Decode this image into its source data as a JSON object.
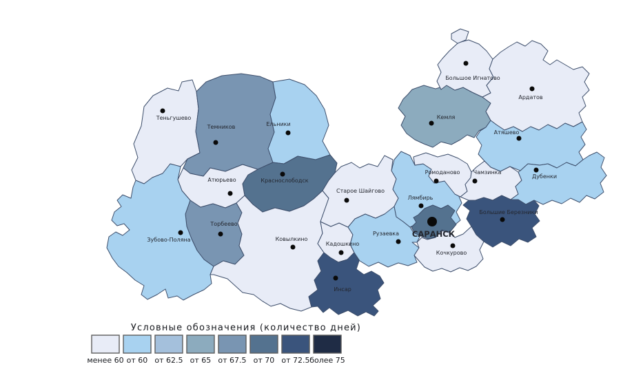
{
  "legend": {
    "title": "Условные обозначения (количество дней)",
    "classes": [
      {
        "label": "менее 60",
        "color": "#e8ecf7"
      },
      {
        "label": "от 60",
        "color": "#a8d2f0"
      },
      {
        "label": "от 62.5",
        "color": "#a4c0dc"
      },
      {
        "label": "от 65",
        "color": "#8cabbe"
      },
      {
        "label": "от 67.5",
        "color": "#7995b2"
      },
      {
        "label": "от 70",
        "color": "#54728f"
      },
      {
        "label": "от 72.5",
        "color": "#3a547c"
      },
      {
        "label": "более 75",
        "color": "#1f2c45"
      }
    ]
  },
  "map": {
    "border_color": "#3d4e6b",
    "dot_color": "#0a0a0a",
    "capital_name": "САРАНСК",
    "districts": [
      {
        "id": "tengushevo",
        "name": "Теньгушево",
        "value": "менее 60",
        "cls": 0,
        "dot": [
          236,
          161
        ],
        "label": [
          252,
          174
        ],
        "shapes": [
          "205,183 209,155 222,139 243,128 259,132 264,119 279,116 285,133 288,158 284,191 290,222 272,231 262,242 247,238 236,252 221,258 209,267 197,262 191,247 200,229 194,209"
        ]
      },
      {
        "id": "temnikov",
        "name": "Темников",
        "value": "от 67.5",
        "cls": 4,
        "dot": [
          313,
          207
        ],
        "label": [
          321,
          187
        ],
        "shapes": [
          "285,133 299,119 322,110 350,107 377,111 396,119 400,142 392,166 398,192 389,216 396,236 374,246 352,239 327,249 305,244 295,256 276,252 266,244 272,231 290,222 284,191 288,158"
        ]
      },
      {
        "id": "elniki",
        "name": "Ельники",
        "value": "от 60",
        "cls": 1,
        "dot": [
          418,
          193
        ],
        "label": [
          404,
          183
        ],
        "shapes": [
          "396,119 420,115 442,123 459,139 471,159 477,182 468,205 479,225 458,232 432,227 412,238 396,236 389,216 398,192 392,166 400,142"
        ]
      },
      {
        "id": "krasnoslobodsk",
        "name": "Краснослободск",
        "value": "от 70",
        "cls": 5,
        "dot": [
          410,
          253
        ],
        "label": [
          413,
          265
        ],
        "shapes": [
          "374,246 396,236 412,238 432,227 458,232 479,225 489,237 486,251 477,262 468,277 455,289 441,299 420,307 399,302 381,308 367,297 355,284 352,267 360,254"
        ]
      },
      {
        "id": "atyurevo",
        "name": "Атюрьево",
        "value": "менее 60",
        "cls": 0,
        "dot": [
          334,
          281
        ],
        "label": [
          322,
          264
        ],
        "shapes": [
          "266,244 276,252 295,256 305,244 327,249 352,239 374,246 360,254 352,267 355,284 343,295 327,302 309,296 291,301 276,291 264,277 258,261"
        ]
      },
      {
        "id": "torbeevo",
        "name": "Торбеево",
        "value": "от 67.5",
        "cls": 4,
        "dot": [
          320,
          340
        ],
        "label": [
          325,
          328
        ],
        "shapes": [
          "276,291 291,301 309,296 327,302 343,295 351,309 345,324 351,340 347,357 354,371 341,384 324,379 310,387 296,377 286,364 278,347 271,329 269,311"
        ]
      },
      {
        "id": "zubova-polyana",
        "name": "Зубово-Поляна",
        "value": "от 60",
        "cls": 1,
        "dot": [
          262,
          338
        ],
        "label": [
          245,
          351
        ],
        "shapes": [
          "197,262 209,267 221,258 236,252 247,238 262,242 258,261 264,277 276,291 269,311 271,329 278,347 286,364 296,377 310,387 305,399 307,412 296,421 281,428 266,436 257,430 244,433 240,420 228,428 214,435 205,428 209,415 196,407 184,396 172,387 163,375 155,360 158,344 168,337 178,342 188,334 180,325 170,328 162,320 166,308 176,300 170,291 178,283 190,288 193,272"
        ]
      },
      {
        "id": "kovylkino",
        "name": "Ковылкино",
        "value": "менее 60",
        "cls": 0,
        "dot": [
          425,
          359
        ],
        "label": [
          423,
          350
        ],
        "shapes": [
          "355,284 367,297 381,308 399,302 420,307 441,299 455,289 468,277 477,288 471,305 465,322 468,339 461,354 470,367 461,379 466,394 456,407 461,421 448,431 452,446 437,452 421,448 407,441 393,445 380,437 368,428 352,425 341,415 330,405 310,399 305,399 310,387 324,379 341,384 354,371 347,357 351,340 345,324 351,309 343,295"
        ]
      },
      {
        "id": "kadoshkino",
        "name": "Кадошкино",
        "value": "менее 60",
        "cls": 0,
        "dot": [
          495,
          367
        ],
        "label": [
          497,
          357
        ],
        "shapes": [
          "465,322 480,329 492,324 505,330 512,341 508,355 514,367 504,377 491,381 479,374 470,367 461,354 468,339"
        ]
      },
      {
        "id": "insar",
        "name": "Инсар",
        "value": "от 72.5",
        "cls": 6,
        "dot": [
          487,
          404
        ],
        "label": [
          497,
          423
        ],
        "shapes": [
          "470,367 479,374 491,381 504,377 514,367 521,379 517,391 528,399 539,394 551,401 557,411 548,421 552,434 541,444 549,452 543,459 531,453 519,459 505,451 491,457 478,447 469,454 461,445 452,446 448,431 461,421 456,407 466,394 461,379"
        ]
      },
      {
        "id": "staroe-shaygovo",
        "name": "Старое Шайгово",
        "value": "менее 60",
        "cls": 0,
        "dot": [
          503,
          291
        ],
        "label": [
          523,
          280
        ],
        "shapes": [
          "486,251 495,242 510,236 522,244 535,238 548,242 558,226 570,232 568,248 575,260 570,275 578,288 572,300 575,315 558,311 545,317 530,311 515,318 505,330 492,324 480,329 465,322 471,305 477,288 468,277 477,262"
        ]
      },
      {
        "id": "ruzaevka",
        "name": "Рузаевка",
        "value": "от 60",
        "cls": 1,
        "dot": [
          578,
          351
        ],
        "label": [
          560,
          342
        ],
        "shapes": [
          "515,318 530,311 545,317 558,311 572,300 575,315 585,322 595,330 600,338 610,342 605,352 598,352 608,360 601,371 605,381 592,386 578,382 563,388 549,381 535,387 522,379 514,367 508,355 512,341 505,330"
        ]
      },
      {
        "id": "lyambir",
        "name": "Лямбирь",
        "value": "от 60",
        "cls": 1,
        "dot": [
          611,
          299
        ],
        "label": [
          610,
          290
        ],
        "shapes": [
          "572,232 582,220 595,226 602,240 614,238 626,246 622,256 630,266 645,263 655,272 665,283 670,295 662,308 668,320 656,330 642,335 630,328 618,332 605,325 595,330 585,322 575,315 572,300 578,288 570,275 575,260 568,248"
        ]
      },
      {
        "id": "romodanovo",
        "name": "Ромоданово",
        "value": "менее 60",
        "cls": 0,
        "dot": [
          633,
          263
        ],
        "label": [
          642,
          253
        ],
        "shapes": [
          "602,240 600,228 618,222 635,228 650,224 665,230 678,238 684,250 683,258 675,268 678,278 668,286 660,282 652,272 645,263 630,266 622,256 626,246 614,238"
        ]
      },
      {
        "id": "kemlya",
        "name": "Кемля",
        "value": "от 65",
        "cls": 3,
        "dot": [
          626,
          179
        ],
        "label": [
          647,
          173
        ],
        "shapes": [
          "598,130 615,124 632,129 648,124 660,131 672,127 685,134 700,141 712,150 705,162 712,175 705,185 695,190 688,200 678,196 668,203 655,210 640,206 628,214 615,209 602,203 590,194 582,182 588,169 578,157 585,144 592,137"
        ]
      },
      {
        "id": "bolshoe-ignatovo",
        "name": "Большое Игнатово",
        "value": "менее 60",
        "cls": 0,
        "dot": [
          676,
          92
        ],
        "label": [
          686,
          116
        ],
        "shapes": [
          "640,130 634,118 640,105 635,94 642,85 652,74 665,62 680,58 695,64 706,74 715,86 710,100 716,112 706,124 712,135 700,141 685,134 672,127 660,131 648,124",
          "655,49 668,42 680,46 676,58 664,63 655,57"
        ]
      },
      {
        "id": "ardatov",
        "name": "Ардатов",
        "value": "менее 60",
        "cls": 0,
        "dot": [
          772,
          129
        ],
        "label": [
          770,
          144
        ],
        "shapes": [
          "715,86 726,76 738,68 750,61 762,67 772,59 785,64 795,74 788,87 798,94 808,87 820,94 832,101 845,97 855,107 848,119 855,131 845,141 850,154 840,164 845,177 832,184 820,179 808,187 795,181 782,189 770,184 758,191 745,184 732,189 720,181 712,175 705,162 712,150 700,141 712,135 706,124 716,112 710,100"
        ]
      },
      {
        "id": "atyashevo",
        "name": "Атяшево",
        "value": "от 60",
        "cls": 1,
        "dot": [
          753,
          201
        ],
        "label": [
          735,
          195
        ],
        "shapes": [
          "705,185 712,175 720,181 732,189 745,184 758,191 770,184 782,189 795,181 808,187 820,179 832,184 845,177 851,188 843,199 849,210 840,221 846,232 835,241 822,236 808,244 795,238 783,240 766,238 755,248 740,242 726,249 712,243 703,234 694,224 699,211 691,199 697,190"
        ]
      },
      {
        "id": "chamzinka",
        "name": "Чамзинка",
        "value": "менее 60",
        "cls": 0,
        "dot": [
          689,
          263
        ],
        "label": [
          707,
          253
        ],
        "shapes": [
          "684,250 691,243 703,234 712,243 726,249 740,242 752,250 757,262 748,271 752,282 741,290 728,284 715,291 702,287 690,291 680,291 668,286 678,278 675,268 683,258"
        ]
      },
      {
        "id": "dubenki",
        "name": "Дубенки",
        "value": "от 60",
        "cls": 1,
        "dot": [
          778,
          247
        ],
        "label": [
          790,
          259
        ],
        "shapes": [
          "846,232 855,226 866,221 877,229 872,243 880,255 871,266 876,279 863,289 851,284 841,294 828,288 815,296 801,291 788,297 775,291 763,297 752,290 741,290 752,282 748,271 757,262 752,250 755,248 766,238 783,240 795,238 808,244 822,236 835,241"
        ]
      },
      {
        "id": "bolshie-berezniki",
        "name": "Большие Березники",
        "value": "от 72.5",
        "cls": 6,
        "dot": [
          729,
          319
        ],
        "label": [
          738,
          311
        ],
        "shapes": [
          "690,291 702,287 715,291 728,284 741,290 752,290 763,297 775,291 782,299 776,311 783,321 772,331 778,344 766,352 753,347 741,357 728,351 715,359 702,351 691,341 684,329 677,318 682,306 672,298 680,291"
        ]
      },
      {
        "id": "kochkurovo",
        "name": "Кочкурово",
        "value": "менее 60",
        "cls": 0,
        "dot": [
          657,
          357
        ],
        "label": [
          655,
          370
        ],
        "shapes": [
          "605,352 612,345 620,348 632,345 640,335 652,338 660,345 672,340 684,329 691,341 702,351 696,363 701,376 691,387 679,393 667,389 654,395 641,390 628,394 616,388 608,379 601,371 608,360"
        ]
      },
      {
        "id": "saransk",
        "name": "САРАНСК",
        "value": "от 70",
        "cls": 5,
        "dot": [
          627,
          322
        ],
        "dot_r": 7,
        "label": [
          629,
          344
        ],
        "capital": true,
        "shapes": [
          "607,312 616,303 628,298 640,303 650,298 660,306 654,316 662,326 653,337 641,334 633,344 621,347 611,343 602,339 597,330 604,323 600,316"
        ]
      }
    ]
  }
}
